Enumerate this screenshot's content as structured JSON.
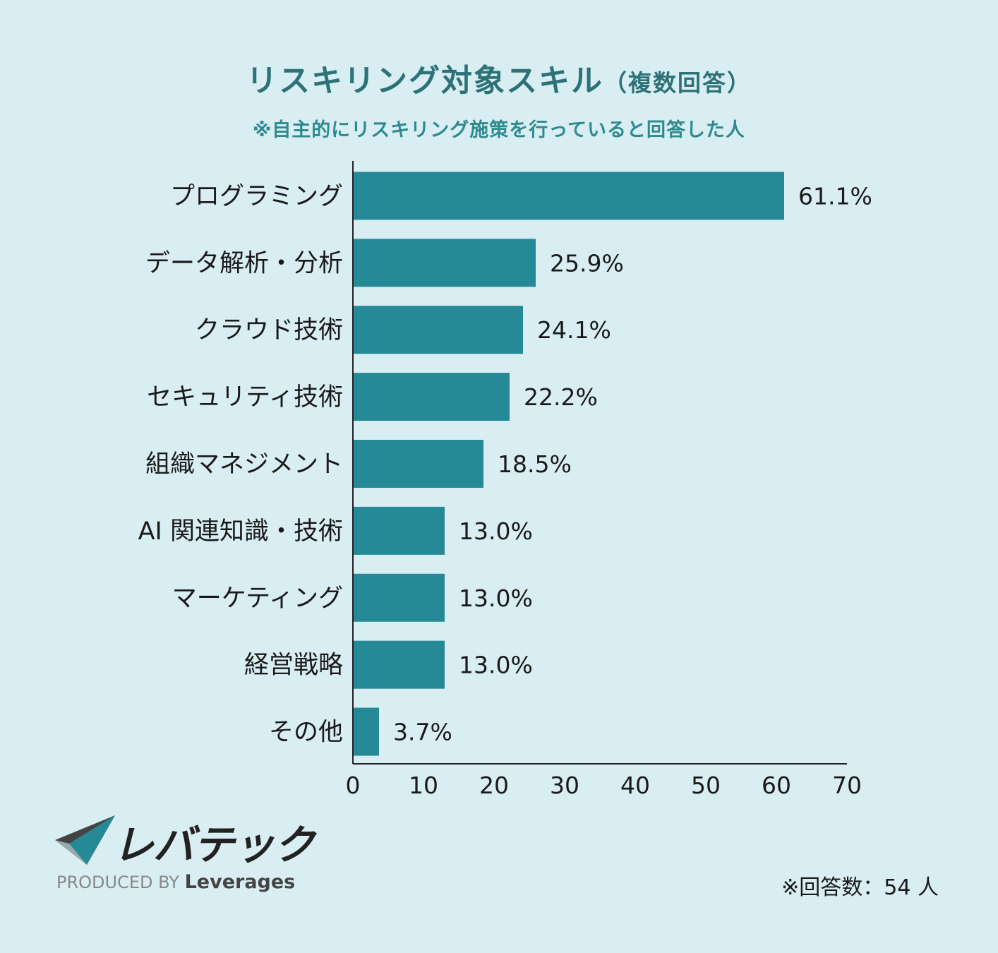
{
  "title": "リスキリング対象スキル",
  "title_suffix": "（複数回答）",
  "subtitle": "※自主的にリスキリング施策を行っていると回答した人",
  "colors": {
    "bar": "#268a96",
    "title": "#2c7277",
    "background": "#d9eef3"
  },
  "chart_data": {
    "type": "bar",
    "orientation": "horizontal",
    "categories": [
      "プログラミング",
      "データ解析・分析",
      "クラウド技術",
      "セキュリティ技術",
      "組織マネジメント",
      "AI 関連知識・技術",
      "マーケティング",
      "経営戦略",
      "その他"
    ],
    "values": [
      61.1,
      25.9,
      24.1,
      22.2,
      18.5,
      13.0,
      13.0,
      13.0,
      3.7
    ],
    "value_labels": [
      "61.1%",
      "25.9%",
      "24.1%",
      "22.2%",
      "18.5%",
      "13.0%",
      "13.0%",
      "13.0%",
      "3.7%"
    ],
    "xlim": [
      0,
      70
    ],
    "xticks": [
      "0",
      "10",
      "20",
      "30",
      "40",
      "50",
      "60",
      "70"
    ],
    "grid": false
  },
  "logo": {
    "name": "レバテック",
    "produced_by": "PRODUCED BY",
    "brand": "Leverages"
  },
  "footnote": "※回答数：54 人"
}
